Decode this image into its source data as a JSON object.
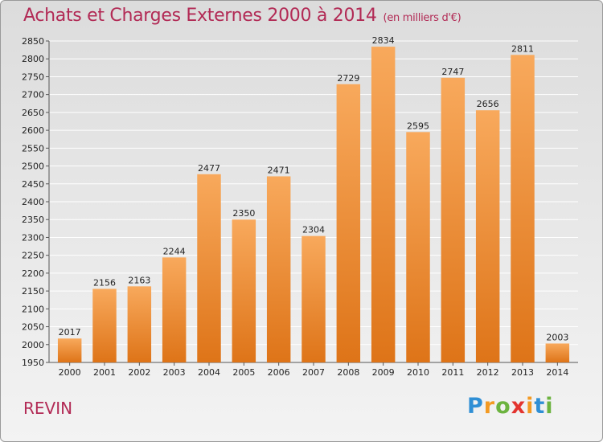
{
  "title": "Achats et Charges Externes 2000 à 2014",
  "subtitle": "(en milliers d'€)",
  "commune": "REVIN",
  "logo": {
    "letters": [
      "P",
      "r",
      "o",
      "x",
      "i",
      "t",
      "i"
    ],
    "colors": [
      "#2f8fd5",
      "#f39a22",
      "#6cb33f",
      "#e3342f",
      "#f39a22",
      "#2f8fd5",
      "#6cb33f"
    ]
  },
  "colors": {
    "bar_top": "#f8a95c",
    "bar_bottom": "#de7418",
    "grid": "#ffffff",
    "title": "#b22a55"
  },
  "chart_data": {
    "type": "bar",
    "title": "Achats et Charges Externes 2000 à 2014",
    "categories": [
      "2000",
      "2001",
      "2002",
      "2003",
      "2004",
      "2005",
      "2006",
      "2007",
      "2008",
      "2009",
      "2010",
      "2011",
      "2012",
      "2013",
      "2014"
    ],
    "values": [
      2017,
      2156,
      2163,
      2244,
      2477,
      2350,
      2471,
      2304,
      2729,
      2834,
      2595,
      2747,
      2656,
      2811,
      2003
    ],
    "ylim": [
      1950,
      2850
    ],
    "yticks": [
      1950,
      2000,
      2050,
      2100,
      2150,
      2200,
      2250,
      2300,
      2350,
      2400,
      2450,
      2500,
      2550,
      2600,
      2650,
      2700,
      2750,
      2800,
      2850
    ],
    "grid": true,
    "xlabel": "",
    "ylabel": ""
  }
}
